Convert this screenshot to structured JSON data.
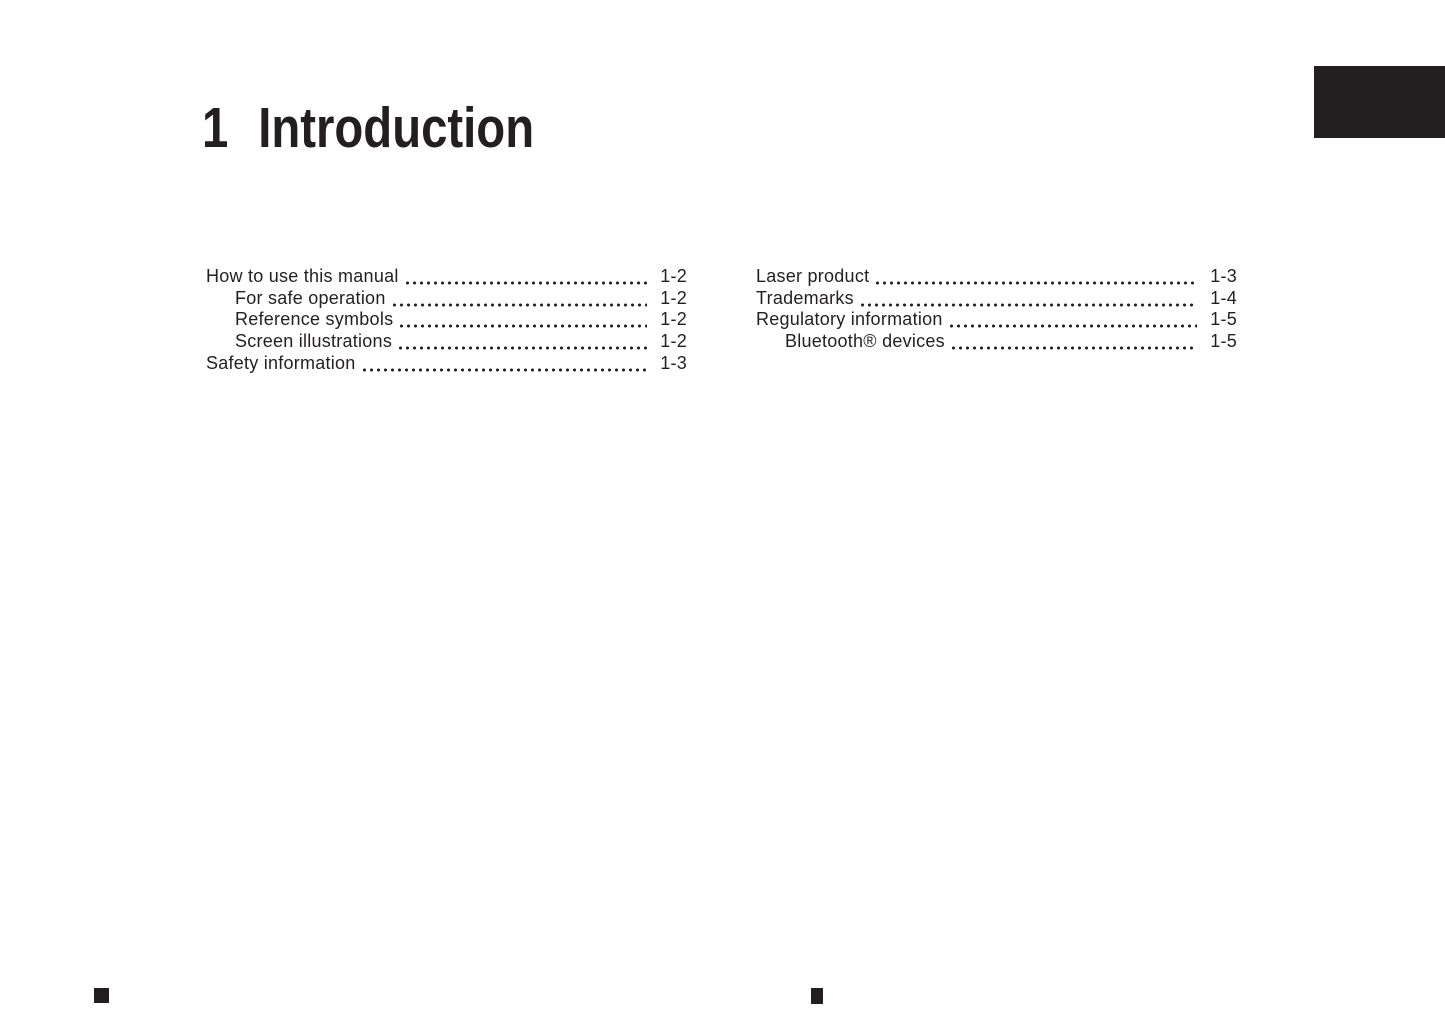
{
  "page": {
    "chapter_number": "1",
    "chapter_title": "Introduction"
  },
  "colors": {
    "ink": "#231f20",
    "background": "#ffffff"
  },
  "toc": {
    "left": [
      {
        "label": "How to use this manual",
        "page": "1-2"
      },
      {
        "label": "For safe operation",
        "page": "1-2"
      },
      {
        "label": "Reference symbols",
        "page": "1-2"
      },
      {
        "label": "Screen illustrations",
        "page": "1-2"
      },
      {
        "label": "Safety information",
        "page": "1-3"
      }
    ],
    "right": [
      {
        "label": "Laser product",
        "page": "1-3"
      },
      {
        "label": "Trademarks",
        "page": "1-4"
      },
      {
        "label": "Regulatory information",
        "page": "1-5"
      },
      {
        "label": "Bluetooth® devices",
        "page": "1-5"
      }
    ]
  }
}
